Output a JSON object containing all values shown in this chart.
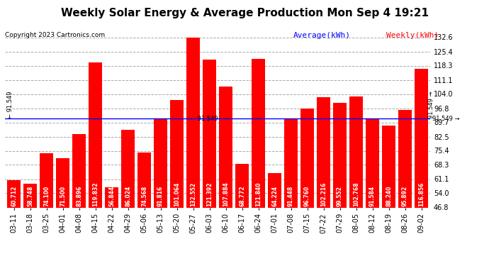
{
  "title": "Weekly Solar Energy & Average Production Mon Sep 4 19:21",
  "copyright": "Copyright 2023 Cartronics.com",
  "legend_average": "Average(kWh)",
  "legend_weekly": "Weekly(kWh)",
  "average_value": 91.549,
  "categories": [
    "03-11",
    "03-18",
    "03-25",
    "04-01",
    "04-08",
    "04-15",
    "04-22",
    "04-29",
    "05-06",
    "05-13",
    "05-20",
    "05-27",
    "06-03",
    "06-10",
    "06-17",
    "06-24",
    "07-01",
    "07-08",
    "07-15",
    "07-22",
    "07-29",
    "08-05",
    "08-12",
    "08-19",
    "08-26",
    "09-02"
  ],
  "values": [
    60.712,
    58.748,
    74.1,
    71.5,
    83.896,
    119.832,
    56.844,
    86.024,
    74.568,
    91.816,
    101.064,
    132.552,
    121.392,
    107.884,
    68.772,
    121.84,
    64.224,
    91.448,
    96.76,
    102.216,
    99.552,
    102.768,
    91.584,
    88.24,
    95.892,
    116.856
  ],
  "bar_color": "#ff0000",
  "avg_line_color": "#0000ff",
  "ylim_min": 46.8,
  "ylim_max": 132.6,
  "yticks": [
    46.8,
    54.0,
    61.1,
    68.3,
    75.4,
    82.5,
    89.7,
    96.8,
    104.0,
    111.1,
    118.3,
    125.4,
    132.6
  ],
  "bg_color": "#ffffff",
  "grid_color": "#aaaaaa",
  "title_fontsize": 11,
  "copyright_fontsize": 6.5,
  "bar_label_fontsize": 5.5,
  "tick_fontsize": 7,
  "legend_fontsize": 8
}
